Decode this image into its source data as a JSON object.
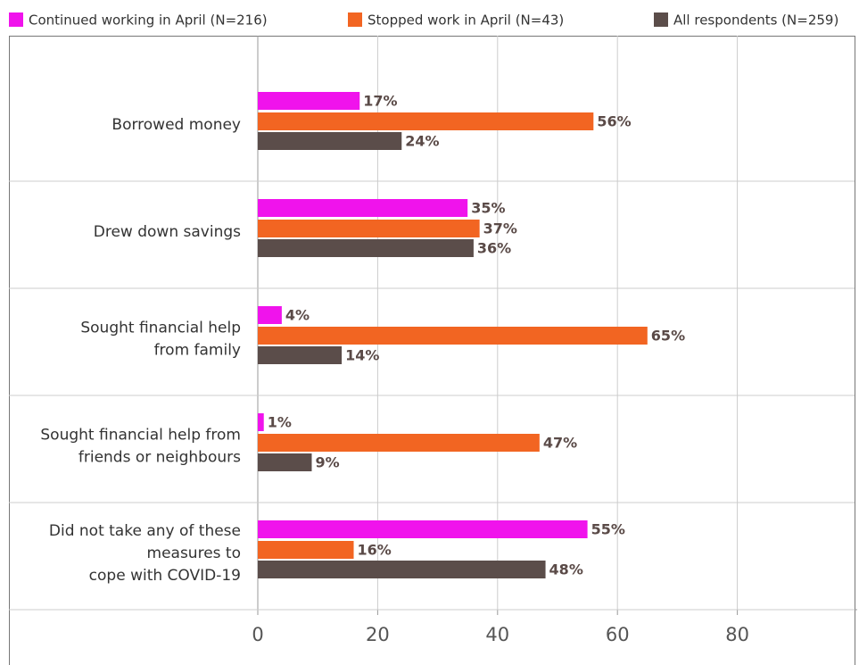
{
  "chart_data": {
    "type": "hbar",
    "categories": [
      [
        "Borrowed money"
      ],
      [
        "Drew down savings"
      ],
      [
        "Sought financial help",
        "from family"
      ],
      [
        "Sought financial help from",
        "friends or neighbours"
      ],
      [
        "Did not take any of these",
        "measures to",
        "cope with COVID-19"
      ]
    ],
    "series": [
      {
        "name": "Continued working in April (N=216)",
        "color": "#f013ec",
        "values": [
          17,
          35,
          4,
          1,
          55
        ],
        "value_labels": [
          "17%",
          "35%",
          "4%",
          "1%",
          "55%"
        ]
      },
      {
        "name": "Stopped work in April (N=43)",
        "color": "#f26522",
        "values": [
          56,
          37,
          65,
          47,
          16
        ],
        "value_labels": [
          "56%",
          "37%",
          "65%",
          "47%",
          "16%"
        ]
      },
      {
        "name": "All respondents (N=259)",
        "color": "#5b4d4a",
        "values": [
          24,
          36,
          14,
          9,
          48
        ],
        "value_labels": [
          "24%",
          "36%",
          "14%",
          "9%",
          "48%"
        ]
      }
    ],
    "xlim": [
      0,
      100
    ],
    "xticks": [
      0,
      20,
      40,
      60,
      80
    ],
    "grid": true,
    "legend": "top"
  }
}
